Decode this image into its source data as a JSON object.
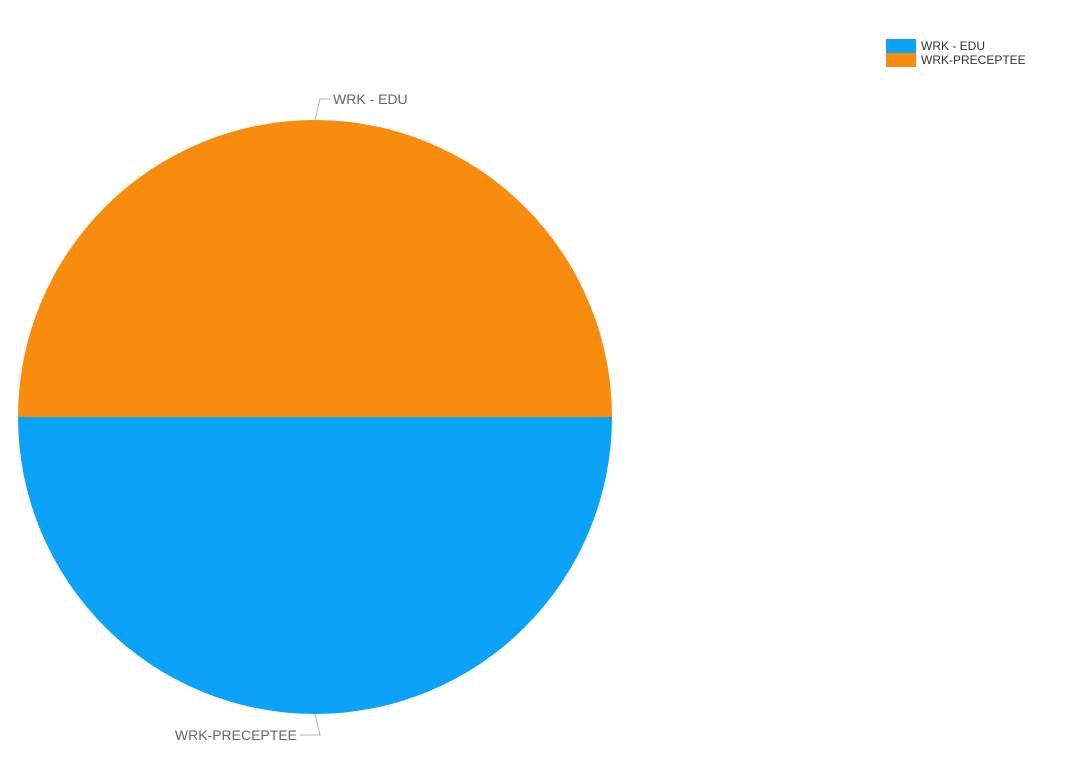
{
  "chart_data": {
    "type": "pie",
    "title": "",
    "slices": [
      {
        "label": "WRK - EDU",
        "value": 50,
        "color": "#0ba2f8"
      },
      {
        "label": "WRK-PRECEPTEE",
        "value": 50,
        "color": "#f78c0e"
      }
    ],
    "legend_position": "top-right",
    "labels_outside": true
  }
}
